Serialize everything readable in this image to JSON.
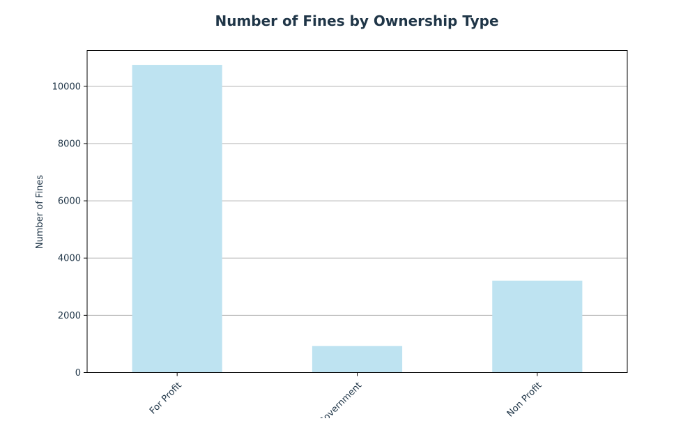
{
  "colors": {
    "bar": "#bee3f1",
    "text": "#1f3547",
    "grid": "#b0b0b0",
    "axis": "#000000"
  },
  "chart_data": {
    "type": "bar",
    "title": "Number of Fines by Ownership Type",
    "xlabel": "",
    "ylabel": "Number of Fines",
    "categories": [
      "For Profit",
      "Government",
      "Non Profit"
    ],
    "values": [
      10750,
      930,
      3210
    ],
    "ylim": [
      0,
      11250
    ],
    "yticks": [
      0,
      2000,
      4000,
      6000,
      8000,
      10000
    ],
    "grid": "horizontal",
    "legend": "none"
  }
}
